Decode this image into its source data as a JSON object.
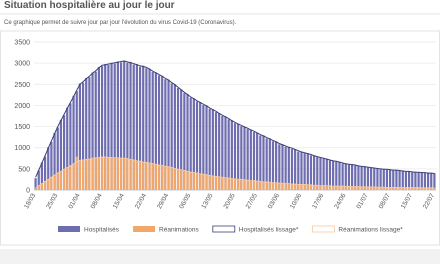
{
  "chart_data": {
    "type": "bar",
    "title": "Situation hospitalière au jour le jour",
    "subtitle": "Ce graphique permet de suivre jour par jour l'évolution du virus Covid-19 (Coronavirus).",
    "categories": [
      "18/03",
      null,
      null,
      null,
      null,
      null,
      null,
      "25/03",
      null,
      null,
      null,
      null,
      null,
      null,
      "01/04",
      null,
      null,
      null,
      null,
      null,
      null,
      "08/04",
      null,
      null,
      null,
      null,
      null,
      null,
      "15/04",
      null,
      null,
      null,
      null,
      null,
      null,
      "22/04",
      null,
      null,
      null,
      null,
      null,
      null,
      "29/04",
      null,
      null,
      null,
      null,
      null,
      null,
      "06/05",
      null,
      null,
      null,
      null,
      null,
      null,
      "13/05",
      null,
      null,
      null,
      null,
      null,
      null,
      "20/05",
      null,
      null,
      null,
      null,
      null,
      null,
      "27/05",
      null,
      null,
      null,
      null,
      null,
      null,
      "03/06",
      null,
      null,
      null,
      null,
      null,
      null,
      "10/06",
      null,
      null,
      null,
      null,
      null,
      null,
      "17/06",
      null,
      null,
      null,
      null,
      null,
      null,
      "24/06",
      null,
      null,
      null,
      null,
      null,
      null,
      "01/07",
      null,
      null,
      null,
      null,
      null,
      null,
      "08/07",
      null,
      null,
      null,
      null,
      null,
      null,
      "15/07",
      null,
      null,
      null,
      null,
      null,
      null,
      "22/07"
    ],
    "series": [
      {
        "name": "Hospitalisés",
        "kind": "bar",
        "color": "#6d6db0",
        "values": [
          280,
          460,
          650,
          790,
          1010,
          1140,
          1350,
          1480,
          1660,
          1770,
          1950,
          2050,
          2230,
          2340,
          2520,
          2540,
          2650,
          2670,
          2780,
          2800,
          2910,
          2930,
          2980,
          2960,
          3010,
          2990,
          3040,
          3020,
          3060,
          3010,
          3030,
          2970,
          2980,
          2920,
          2940,
          2880,
          2870,
          2790,
          2780,
          2710,
          2700,
          2620,
          2610,
          2520,
          2500,
          2410,
          2380,
          2290,
          2270,
          2180,
          2170,
          2090,
          2080,
          2010,
          2000,
          1920,
          1910,
          1840,
          1820,
          1750,
          1740,
          1670,
          1650,
          1580,
          1570,
          1510,
          1500,
          1440,
          1430,
          1370,
          1360,
          1290,
          1290,
          1220,
          1220,
          1150,
          1150,
          1080,
          1080,
          1020,
          1020,
          970,
          970,
          910,
          910,
          870,
          870,
          820,
          820,
          780,
          780,
          740,
          740,
          700,
          700,
          670,
          670,
          630,
          630,
          600,
          610,
          580,
          580,
          550,
          560,
          530,
          530,
          510,
          510,
          490,
          500,
          480,
          490,
          460,
          470,
          450,
          460,
          430,
          440,
          420,
          430,
          410,
          420,
          400,
          410,
          390,
          400
        ]
      },
      {
        "name": "Réanimations",
        "kind": "bar",
        "color": "#f2a76a",
        "values": [
          40,
          110,
          140,
          210,
          240,
          310,
          340,
          410,
          430,
          500,
          520,
          580,
          610,
          790,
          690,
          720,
          710,
          740,
          740,
          770,
          760,
          790,
          770,
          780,
          760,
          770,
          750,
          760,
          740,
          750,
          710,
          720,
          680,
          690,
          650,
          660,
          630,
          630,
          600,
          600,
          570,
          570,
          540,
          540,
          500,
          500,
          470,
          470,
          430,
          430,
          400,
          410,
          370,
          380,
          350,
          350,
          320,
          330,
          300,
          310,
          280,
          290,
          260,
          270,
          240,
          260,
          230,
          240,
          210,
          230,
          200,
          210,
          180,
          200,
          170,
          180,
          160,
          170,
          150,
          160,
          140,
          150,
          130,
          140,
          120,
          140,
          110,
          130,
          100,
          120,
          90,
          110,
          90,
          110,
          80,
          100,
          80,
          100,
          80,
          90,
          70,
          90,
          70,
          80,
          70,
          80,
          60,
          80,
          60,
          70,
          60,
          70,
          50,
          70,
          50,
          70,
          50,
          60,
          50,
          60,
          50,
          60,
          50,
          55,
          45,
          55,
          45
        ]
      },
      {
        "name": "Hospitalisés lissage*",
        "kind": "line",
        "color": "#3d3d78",
        "values": [
          300,
          470,
          640,
          810,
          990,
          1160,
          1330,
          1500,
          1640,
          1790,
          1930,
          2070,
          2210,
          2360,
          2500,
          2560,
          2630,
          2690,
          2760,
          2820,
          2890,
          2950,
          2960,
          2980,
          2990,
          3010,
          3020,
          3040,
          3050,
          3030,
          3010,
          2990,
          2960,
          2940,
          2920,
          2900,
          2860,
          2810,
          2770,
          2730,
          2690,
          2640,
          2600,
          2540,
          2490,
          2430,
          2370,
          2310,
          2260,
          2200,
          2160,
          2110,
          2070,
          2030,
          1990,
          1940,
          1900,
          1860,
          1810,
          1770,
          1730,
          1690,
          1640,
          1600,
          1560,
          1530,
          1490,
          1460,
          1420,
          1390,
          1350,
          1310,
          1280,
          1240,
          1210,
          1170,
          1140,
          1100,
          1070,
          1040,
          1010,
          990,
          960,
          930,
          900,
          880,
          860,
          840,
          810,
          790,
          770,
          750,
          730,
          710,
          690,
          680,
          660,
          640,
          620,
          610,
          600,
          590,
          570,
          560,
          550,
          540,
          530,
          520,
          510,
          500,
          490,
          490,
          480,
          470,
          470,
          460,
          450,
          440,
          440,
          430,
          420,
          420,
          410,
          410,
          400,
          400,
          390
        ]
      },
      {
        "name": "Réanimations lissage*",
        "kind": "line",
        "color": "#f6c9a3",
        "values": [
          50,
          100,
          150,
          200,
          250,
          300,
          350,
          400,
          440,
          490,
          530,
          570,
          620,
          660,
          700,
          710,
          720,
          730,
          750,
          760,
          770,
          780,
          780,
          770,
          770,
          760,
          760,
          750,
          750,
          740,
          720,
          710,
          690,
          680,
          660,
          650,
          640,
          620,
          610,
          590,
          580,
          560,
          550,
          530,
          510,
          490,
          480,
          460,
          440,
          420,
          410,
          400,
          380,
          370,
          360,
          340,
          330,
          320,
          310,
          300,
          290,
          280,
          270,
          260,
          250,
          250,
          240,
          230,
          220,
          220,
          210,
          200,
          190,
          190,
          180,
          170,
          170,
          160,
          160,
          150,
          150,
          140,
          140,
          130,
          130,
          130,
          120,
          120,
          110,
          110,
          100,
          100,
          100,
          100,
          90,
          90,
          90,
          90,
          85,
          85,
          80,
          80,
          80,
          75,
          75,
          70,
          70,
          70,
          65,
          65,
          65,
          60,
          60,
          60,
          60,
          60,
          55,
          55,
          55,
          55,
          55,
          55,
          50,
          50,
          50,
          50,
          50
        ]
      }
    ],
    "ylim": [
      0,
      3500
    ],
    "yticks": [
      0,
      500,
      1000,
      1500,
      2000,
      2500,
      3000,
      3500
    ],
    "grid": true
  }
}
